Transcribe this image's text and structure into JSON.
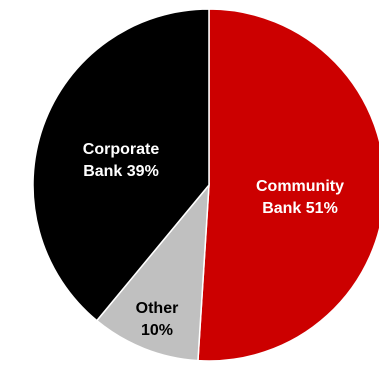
{
  "chart_data": {
    "type": "pie",
    "title": "",
    "slices": [
      {
        "label": "Community Bank",
        "value": 51,
        "color": "#cc0000",
        "label_color": "#ffffff",
        "line1": "Community",
        "line2": "Bank 51%"
      },
      {
        "label": "Other",
        "value": 10,
        "color": "#c0c0c0",
        "label_color": "#000000",
        "line1": "Other",
        "line2": "10%"
      },
      {
        "label": "Corporate Bank",
        "value": 39,
        "color": "#000000",
        "label_color": "#ffffff",
        "line1": "Corporate",
        "line2": "Bank 39%"
      }
    ],
    "start_angle": "12 o'clock",
    "direction": "clockwise",
    "legend": "none",
    "border_color": "#ffffff"
  }
}
